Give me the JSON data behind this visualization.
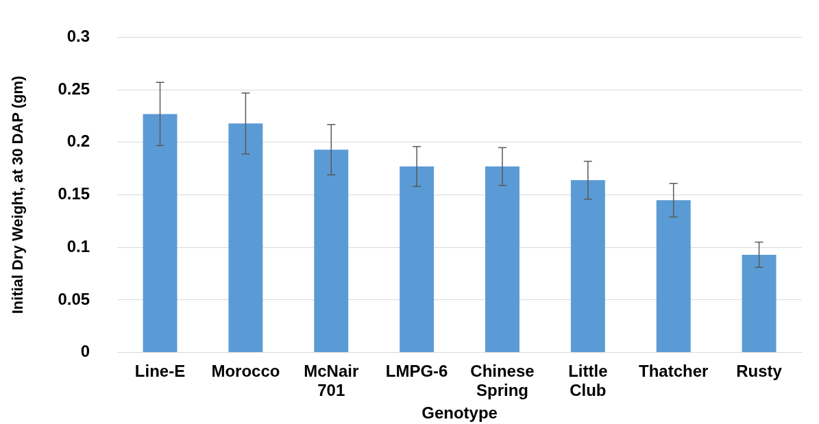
{
  "chart_data": {
    "type": "bar",
    "xlabel": "Genotype",
    "ylabel": "Initial Dry Weight, at 30 DAP (gm)",
    "categories": [
      "Line-E",
      "Morocco",
      "McNair 701",
      "LMPG-6",
      "Chinese Spring",
      "Little Club",
      "Thatcher",
      "Rusty"
    ],
    "values": [
      0.227,
      0.218,
      0.193,
      0.177,
      0.177,
      0.164,
      0.145,
      0.093
    ],
    "errors": [
      0.03,
      0.029,
      0.024,
      0.019,
      0.018,
      0.018,
      0.016,
      0.012
    ],
    "color": "#5b9bd5",
    "ylim": [
      0,
      0.3
    ],
    "yticks": [
      0,
      0.05,
      0.1,
      0.15,
      0.2,
      0.25,
      0.3
    ],
    "grid": "y",
    "legend": false
  }
}
